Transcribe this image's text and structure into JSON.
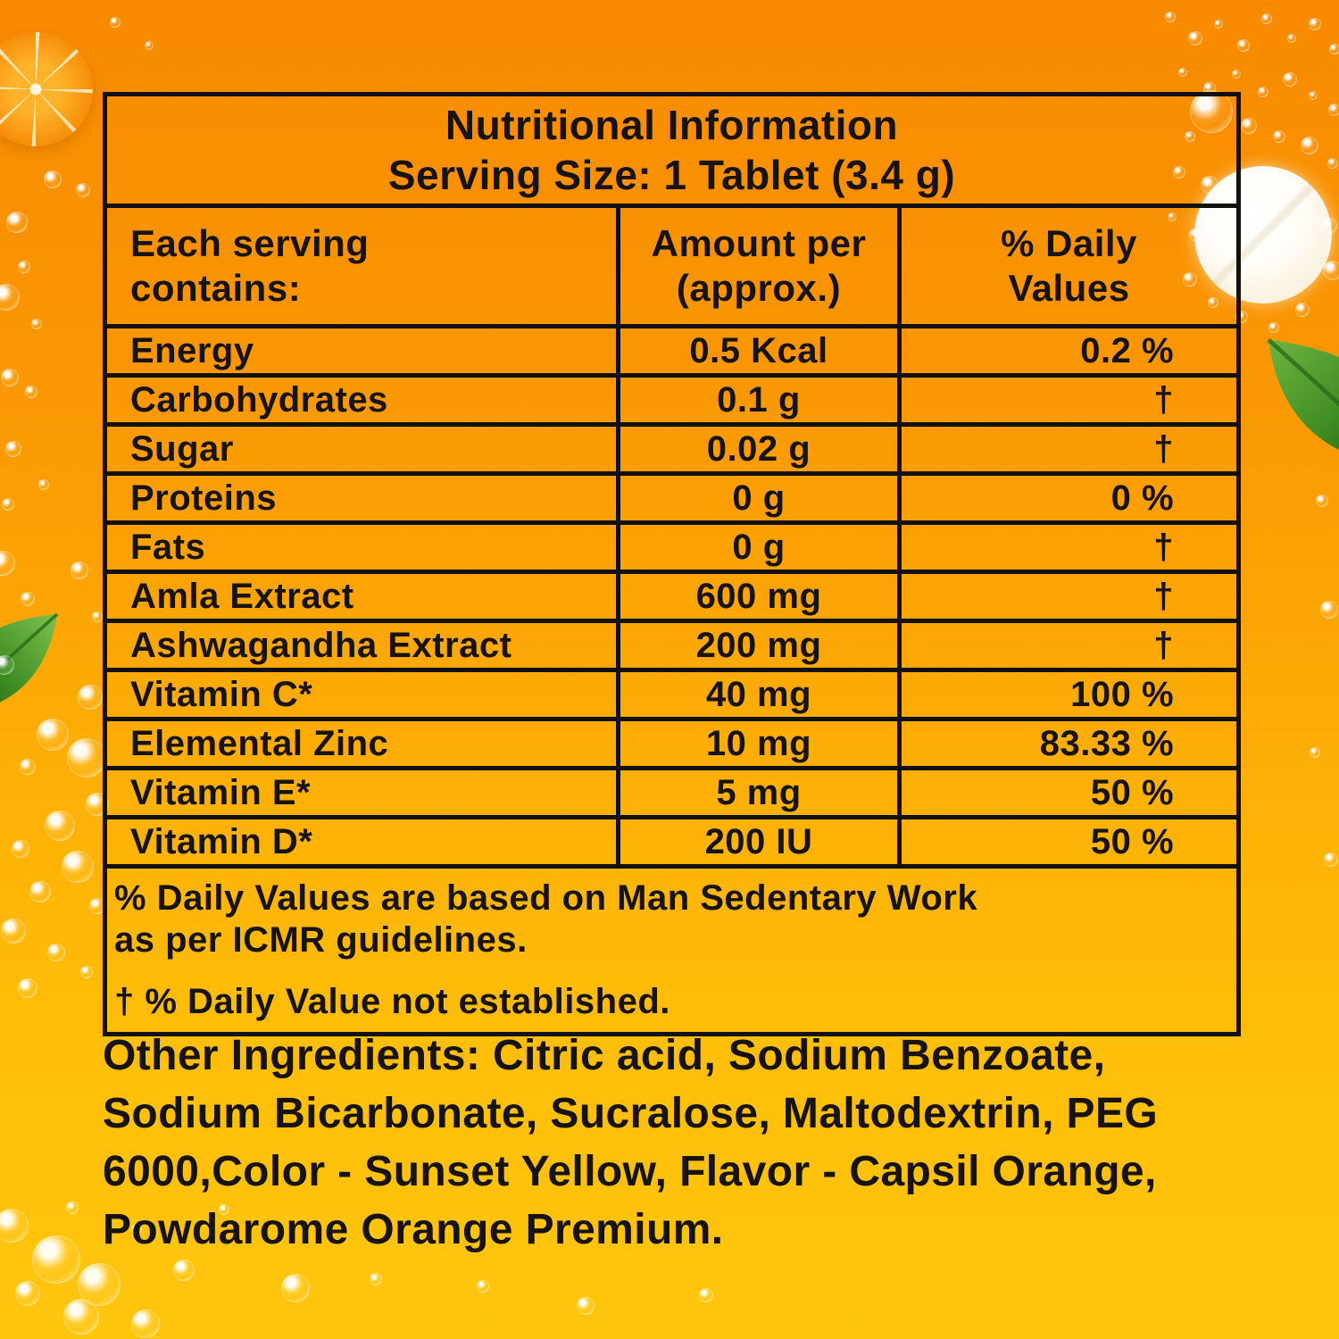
{
  "header": {
    "title_line1": "Nutritional Information",
    "title_line2": "Serving Size: 1 Tablet (3.4 g)"
  },
  "table": {
    "headers": [
      "Each serving contains:",
      "Amount per (approx.)",
      "% Daily Values"
    ],
    "rows": [
      {
        "name": "Energy",
        "amount": "0.5 Kcal",
        "daily": "0.2 %"
      },
      {
        "name": "Carbohydrates",
        "amount": "0.1 g",
        "daily": "†"
      },
      {
        "name": "Sugar",
        "amount": "0.02 g",
        "daily": "†"
      },
      {
        "name": "Proteins",
        "amount": "0 g",
        "daily": "0 %"
      },
      {
        "name": "Fats",
        "amount": "0 g",
        "daily": "†"
      },
      {
        "name": "Amla Extract",
        "amount": "600 mg",
        "daily": "†"
      },
      {
        "name": "Ashwagandha Extract",
        "amount": "200 mg",
        "daily": "†"
      },
      {
        "name": "Vitamin C*",
        "amount": "40 mg",
        "daily": "100 %"
      },
      {
        "name": "Elemental Zinc",
        "amount": "10 mg",
        "daily": "83.33 %"
      },
      {
        "name": "Vitamin E*",
        "amount": "5 mg",
        "daily": "50 %"
      },
      {
        "name": "Vitamin D*",
        "amount": "200 IU",
        "daily": "50 %"
      }
    ],
    "footnotes": [
      "% Daily Values are based on Man Sedentary Work as per ICMR guidelines.",
      "† % Daily Value not established."
    ]
  },
  "ingredients": {
    "label": "Other Ingredients:",
    "text": " Citric acid, Sodium Benzoate, Sodium Bicarbonate, Sucralose, Maltodextrin, PEG 6000,Color - Sunset Yellow, Flavor - Capsil Orange, Powdarome Orange Premium."
  },
  "decorations": {
    "orange_slice": "orange-slice-image",
    "tablet": "effervescent-tablet-image",
    "left_leaf": "leaf-image",
    "right_leaf": "leaf-image",
    "bubbles": "fizz-bubbles"
  },
  "colors": {
    "background_top": "#F88A00",
    "background_bottom": "#FFC60E",
    "text": "#171310",
    "border": "#131110",
    "leaf_green_dark": "#1F5710",
    "leaf_green_light": "#7CC24E",
    "tablet_white": "#FDF7EB"
  }
}
